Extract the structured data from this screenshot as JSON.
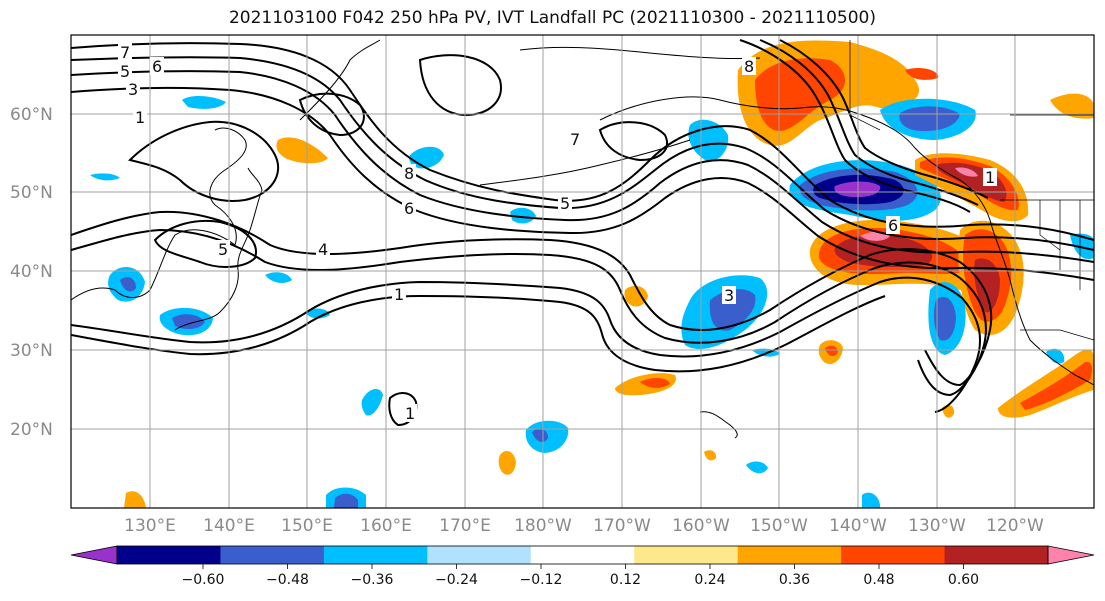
{
  "title": "2021103100 F042 250 hPa PV, IVT Landfall PC (2021110300 - 2021110500)",
  "map": {
    "lat_labels": [
      "60°N",
      "50°N",
      "40°N",
      "30°N",
      "20°N"
    ],
    "lon_labels": [
      "130°E",
      "140°E",
      "150°E",
      "160°E",
      "170°E",
      "180°W",
      "170°W",
      "160°W",
      "150°W",
      "140°W",
      "130°W",
      "120°W"
    ],
    "contour_labels": [
      "7",
      "6",
      "5",
      "3",
      "8",
      "6",
      "7",
      "5",
      "4",
      "5",
      "1",
      "3",
      "8",
      "6",
      "1",
      "1",
      "1"
    ],
    "gridlines": true
  },
  "colorbar": {
    "colors": [
      "#9932cc",
      "#00008b",
      "#3a5fcd",
      "#00bfff",
      "#b0e2ff",
      "#ffffff",
      "#fde98b",
      "#ffa500",
      "#ff4500",
      "#b22222",
      "#ff82ab"
    ],
    "tick_labels": [
      "−0.60",
      "−0.48",
      "−0.36",
      "−0.24",
      "−0.12",
      "0.12",
      "0.24",
      "0.36",
      "0.48",
      "0.60"
    ]
  }
}
